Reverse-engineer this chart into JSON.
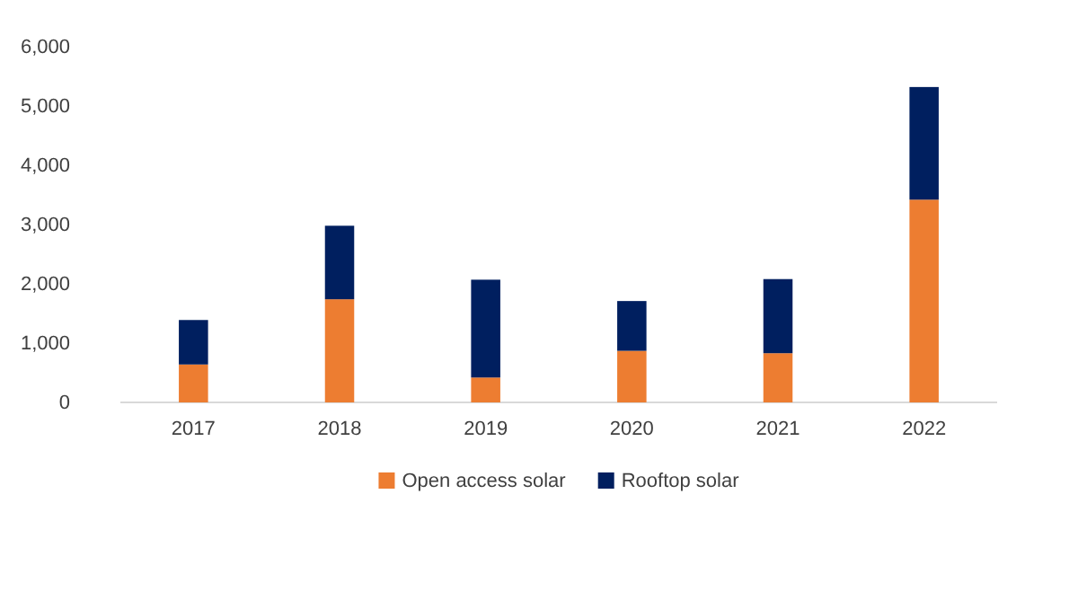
{
  "chart_data": {
    "type": "bar",
    "stacked": true,
    "categories": [
      "2017",
      "2018",
      "2019",
      "2020",
      "2021",
      "2022"
    ],
    "series": [
      {
        "name": "Open access solar",
        "color": "#ed7d31",
        "values": [
          640,
          1740,
          420,
          870,
          830,
          3420
        ]
      },
      {
        "name": "Rooftop solar",
        "color": "#001f5f",
        "values": [
          750,
          1240,
          1650,
          840,
          1250,
          1900
        ]
      }
    ],
    "ylim": [
      0,
      6000
    ],
    "yticks": [
      {
        "value": 0,
        "label": "0"
      },
      {
        "value": 1000,
        "label": "1,000"
      },
      {
        "value": 2000,
        "label": "2,000"
      },
      {
        "value": 3000,
        "label": "3,000"
      },
      {
        "value": 4000,
        "label": "4,000"
      },
      {
        "value": 5000,
        "label": "5,000"
      },
      {
        "value": 6000,
        "label": "6,000"
      }
    ],
    "grid": false,
    "legend": "bottom"
  }
}
